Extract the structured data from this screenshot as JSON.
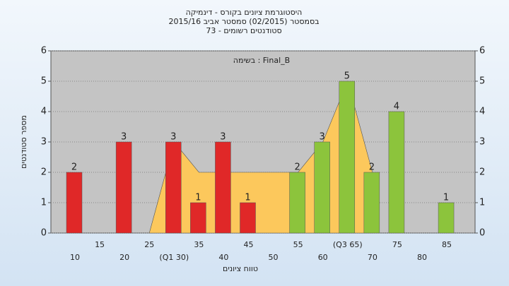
{
  "chart_data": {
    "type": "bar",
    "title": [
      "היסטוגרמת ציונים בקורס - דינמיקה",
      "בסמסטר (02/2015) סמסטר אביב 2015/16",
      "סטודנטים רשומים - 73"
    ],
    "annotation": "בשימה : Final_B",
    "x_label": "טווח ציונים",
    "y_label": "מספר סטודנטים",
    "categories": [
      "10",
      "15",
      "20",
      "25",
      "(Q1 30)",
      "35",
      "40",
      "45",
      "50",
      "55",
      "60",
      "(Q3 65)",
      "70",
      "75",
      "80",
      "85"
    ],
    "values": [
      2,
      null,
      3,
      null,
      3,
      1,
      3,
      1,
      null,
      2,
      3,
      5,
      2,
      4,
      null,
      1
    ],
    "colors": [
      "#e02828",
      null,
      "#e02828",
      null,
      "#e02828",
      "#e02828",
      "#e02828",
      "#e02828",
      null,
      "#8cc43c",
      "#8cc43c",
      "#8cc43c",
      "#8cc43c",
      "#8cc43c",
      null,
      "#8cc43c"
    ],
    "area": {
      "values": [
        null,
        null,
        null,
        0,
        3,
        2,
        2,
        2,
        2,
        2,
        3,
        5,
        2,
        null,
        null,
        null
      ],
      "color": "#fcc85c"
    },
    "ylim": [
      0,
      6
    ],
    "yticks": [
      0,
      1,
      2,
      3,
      4,
      5,
      6
    ],
    "y2lim": [
      0,
      6
    ],
    "y2ticks": [
      0,
      1,
      2,
      3,
      4,
      5,
      6
    ],
    "grid": true
  }
}
